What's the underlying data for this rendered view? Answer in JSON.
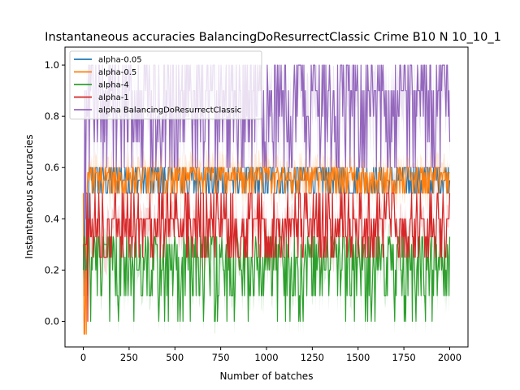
{
  "chart_data": {
    "type": "line",
    "title": "Instantaneous accuracies BalancingDoResurrectClassic Crime B10 N 10_10_1",
    "xlabel": "Number of batches",
    "ylabel": "Instantaneous accuracies",
    "xlim": [
      -100,
      2100
    ],
    "ylim": [
      -0.1,
      1.07
    ],
    "x_ticks": [
      0,
      250,
      500,
      750,
      1000,
      1250,
      1500,
      1750,
      2000
    ],
    "y_ticks": [
      0.0,
      0.2,
      0.4,
      0.6,
      0.8,
      1.0
    ],
    "x_tick_labels": [
      "0",
      "250",
      "500",
      "750",
      "1000",
      "1250",
      "1500",
      "1750",
      "2000"
    ],
    "y_tick_labels": [
      "0.0",
      "0.2",
      "0.4",
      "0.6",
      "0.8",
      "1.0"
    ],
    "grid": false,
    "legend_position": "top-left",
    "n_batches": 2000,
    "series": [
      {
        "name": "alpha-0.05",
        "color": "#1f77b4",
        "description_values": "oscillates mostly between 0.5 and 0.6 after ~30 batches, hidden behind later series",
        "typical_range": [
          0.5,
          0.6
        ]
      },
      {
        "name": "alpha-0.5",
        "color": "#ff7f0e",
        "typical_range": [
          0.5,
          0.6
        ],
        "values_set": [
          0.5,
          0.55,
          0.58,
          0.6
        ]
      },
      {
        "name": "alpha-4",
        "color": "#2ca02c",
        "typical_range": [
          0.1,
          0.33
        ],
        "values_set": [
          0.0,
          0.1,
          0.2,
          0.25,
          0.3,
          0.33
        ]
      },
      {
        "name": "alpha-1",
        "color": "#d62728",
        "typical_range": [
          0.3,
          0.5
        ],
        "values_set": [
          0.0,
          0.25,
          0.33,
          0.4,
          0.5
        ]
      },
      {
        "name": "alpha BalancingDoResurrectClassic",
        "color": "#9467bd",
        "typical_range": [
          0.6,
          1.0
        ],
        "values_set": [
          0.5,
          0.6,
          0.7,
          0.8,
          0.9,
          1.0
        ]
      }
    ]
  }
}
